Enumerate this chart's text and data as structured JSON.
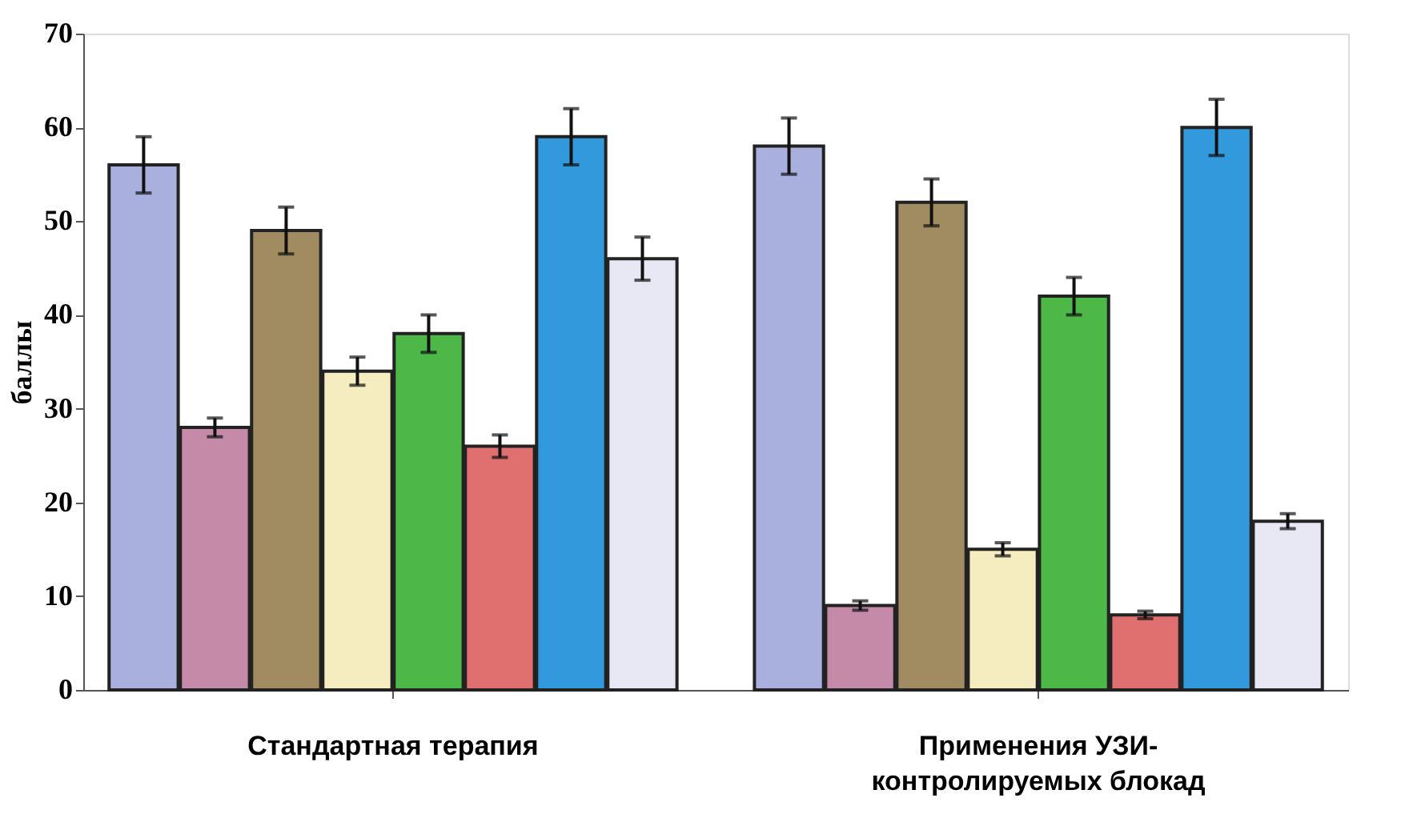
{
  "chart_data": {
    "type": "bar",
    "ylabel": "баллы",
    "categories": [
      "Стандартная терапия",
      "Применения УЗИ-контролируемых блокад"
    ],
    "series": [
      {
        "color": "#aab0dd",
        "values": [
          56,
          58
        ],
        "errors": [
          3,
          3
        ]
      },
      {
        "color": "#c58aa8",
        "values": [
          28,
          9
        ],
        "errors": [
          1,
          0.5
        ]
      },
      {
        "color": "#a08c60",
        "values": [
          49,
          52
        ],
        "errors": [
          2.5,
          2.5
        ]
      },
      {
        "color": "#f5edc0",
        "values": [
          34,
          15
        ],
        "errors": [
          1.5,
          0.7
        ]
      },
      {
        "color": "#4db848",
        "values": [
          38,
          42
        ],
        "errors": [
          2,
          2
        ]
      },
      {
        "color": "#e07070",
        "values": [
          26,
          8
        ],
        "errors": [
          1.2,
          0.4
        ]
      },
      {
        "color": "#3399dd",
        "values": [
          59,
          60
        ],
        "errors": [
          3,
          3
        ]
      },
      {
        "color": "#e8e8f4",
        "values": [
          46,
          18
        ],
        "errors": [
          2.3,
          0.8
        ]
      }
    ],
    "ylim": [
      0,
      70
    ],
    "yticks": [
      0,
      10,
      20,
      30,
      40,
      50,
      60,
      70
    ],
    "grid": false,
    "legend": false
  }
}
